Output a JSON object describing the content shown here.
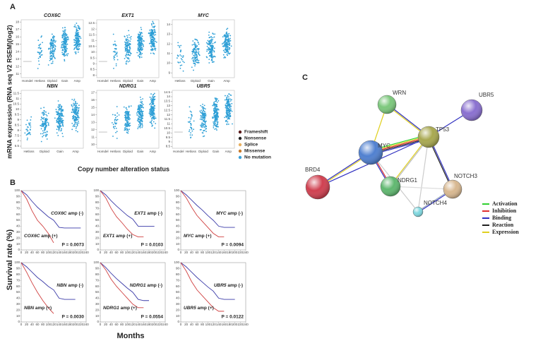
{
  "panel_a": {
    "label": "A",
    "y_label": "mRNA expression (RNA seq V2 RSEM)(log2)",
    "x_label": "Copy number alteration status",
    "plots": [
      {
        "gene": "COX6C",
        "categories": [
          "Homdel",
          "Hetloss",
          "Diploid",
          "Gain",
          "Amp"
        ],
        "ylim": [
          10.5,
          18.3
        ],
        "yticks": [
          11,
          12,
          13,
          14,
          15,
          16,
          17,
          18
        ]
      },
      {
        "gene": "EXT1",
        "categories": [
          "Homdel",
          "Hetloss",
          "Diploid",
          "Gain",
          "Amp"
        ],
        "ylim": [
          7.8,
          12.8
        ],
        "yticks": [
          8,
          8.5,
          9,
          9.5,
          10,
          10.5,
          11,
          11.5,
          12,
          12.5
        ]
      },
      {
        "gene": "MYC",
        "categories": [
          "Hetloss",
          "Diploid",
          "Gain",
          "Amp"
        ],
        "ylim": [
          8.5,
          14.5
        ],
        "yticks": [
          9,
          10,
          11,
          12,
          13,
          14
        ]
      },
      {
        "gene": "NBN",
        "categories": [
          "Hetloss",
          "Diploid",
          "Gain",
          "Amp"
        ],
        "ylim": [
          6.3,
          11.8
        ],
        "yticks": [
          6.5,
          7,
          7.5,
          8,
          8.5,
          9,
          9.5,
          10,
          10.5,
          11,
          11.5
        ]
      },
      {
        "gene": "NDRG1",
        "categories": [
          "Homdel",
          "Hetloss",
          "Diploid",
          "Gain",
          "Amp"
        ],
        "ylim": [
          9.5,
          17.3
        ],
        "yticks": [
          10,
          11,
          12,
          13,
          14,
          15,
          16,
          17
        ]
      },
      {
        "gene": "UBR5",
        "categories": [
          "Homdel",
          "Hetloss",
          "Diploid",
          "Gain",
          "Amp"
        ],
        "ylim": [
          8.3,
          14.7
        ],
        "yticks": [
          8.5,
          9,
          9.5,
          10,
          10.5,
          11,
          11.5,
          12,
          12.5,
          13,
          13.5,
          14,
          14.5
        ]
      }
    ],
    "legend": [
      {
        "name": "Frameshift",
        "color": "#5a1a1a"
      },
      {
        "name": "Nonsense",
        "color": "#222222"
      },
      {
        "name": "Splice",
        "color": "#e8b060"
      },
      {
        "name": "Missense",
        "color": "#c87a2a"
      },
      {
        "name": "No mutation",
        "color": "#3aa0d8"
      }
    ]
  },
  "panel_b": {
    "label": "B",
    "y_label": "Survival rate (%)",
    "x_label": "Months",
    "xlim": [
      0,
      240
    ],
    "xticks": [
      0,
      20,
      40,
      60,
      80,
      100,
      120,
      140,
      160,
      180,
      200,
      220,
      240
    ],
    "ylim": [
      0,
      100
    ],
    "yticks": [
      0,
      10,
      20,
      30,
      40,
      50,
      60,
      70,
      80,
      90,
      100
    ],
    "x": [
      0,
      20,
      40,
      60,
      80,
      100,
      120,
      140,
      160,
      180,
      200,
      220
    ],
    "neg_color": "#3a3aa8",
    "pos_color": "#d04040",
    "plots": [
      {
        "gene": "COX6C",
        "neg_label": "amp (-)",
        "pos_label": "amp (+)",
        "p_text": "P = 0.0073",
        "neg": [
          100,
          93,
          82,
          72,
          64,
          56,
          50,
          38,
          37,
          37,
          37,
          37
        ],
        "pos": [
          100,
          86,
          66,
          50,
          40,
          28,
          12,
          null,
          null,
          null,
          null,
          null
        ]
      },
      {
        "gene": "EXT1",
        "neg_label": "amp (-)",
        "pos_label": "amp (+)",
        "p_text": "P = 0.0103",
        "neg": [
          100,
          93,
          83,
          74,
          66,
          58,
          52,
          40,
          40,
          40,
          40,
          null
        ],
        "pos": [
          100,
          88,
          70,
          56,
          46,
          35,
          26,
          22,
          22,
          null,
          null,
          null
        ]
      },
      {
        "gene": "MYC",
        "neg_label": "amp (-)",
        "pos_label": "amp (+)",
        "p_text": "P = 0.0094",
        "neg": [
          100,
          93,
          84,
          75,
          67,
          58,
          50,
          40,
          38,
          38,
          38,
          null
        ],
        "pos": [
          100,
          88,
          72,
          58,
          48,
          38,
          28,
          22,
          22,
          null,
          null,
          null
        ]
      },
      {
        "gene": "NBN",
        "neg_label": "amp (-)",
        "pos_label": "amp (+)",
        "p_text": "P = 0.0030",
        "neg": [
          100,
          93,
          84,
          75,
          68,
          60,
          54,
          40,
          38,
          38,
          38,
          null
        ],
        "pos": [
          100,
          84,
          66,
          50,
          36,
          24,
          14,
          null,
          null,
          null,
          null,
          null
        ]
      },
      {
        "gene": "NDRG1",
        "neg_label": "amp (-)",
        "pos_label": "amp (+)",
        "p_text": "P = 0.0554",
        "neg": [
          100,
          92,
          82,
          73,
          65,
          57,
          50,
          38,
          36,
          36,
          null,
          null
        ],
        "pos": [
          100,
          88,
          72,
          60,
          50,
          40,
          30,
          24,
          24,
          null,
          null,
          null
        ]
      },
      {
        "gene": "UBR5",
        "neg_label": "amp (-)",
        "pos_label": "amp (+)",
        "p_text": "P = 0.0122",
        "neg": [
          100,
          93,
          84,
          75,
          67,
          59,
          52,
          40,
          38,
          38,
          38,
          null
        ],
        "pos": [
          100,
          86,
          68,
          54,
          44,
          34,
          24,
          18,
          18,
          null,
          null,
          null
        ]
      }
    ]
  },
  "panel_c": {
    "label": "C",
    "nodes": [
      {
        "label": "WRN",
        "color": "#7cc87c"
      },
      {
        "label": "UBR5",
        "color": "#8a70d0"
      },
      {
        "label": "TP53",
        "color": "#a8a850"
      },
      {
        "label": "BRD4",
        "color": "#d04050"
      },
      {
        "label": "MYC",
        "color": "#5080d0"
      },
      {
        "label": "NDRG1",
        "color": "#60b870"
      },
      {
        "label": "NOTCH3",
        "color": "#d8b890"
      },
      {
        "label": "NOTCH4",
        "color": "#80d8e0"
      }
    ],
    "legend": [
      {
        "name": "Activation",
        "color": "#30d030"
      },
      {
        "name": "Inhibition",
        "color": "#e03030"
      },
      {
        "name": "Binding",
        "color": "#3030c0"
      },
      {
        "name": "Reaction",
        "color": "#202020"
      },
      {
        "name": "Expression",
        "color": "#e0d020"
      }
    ]
  }
}
